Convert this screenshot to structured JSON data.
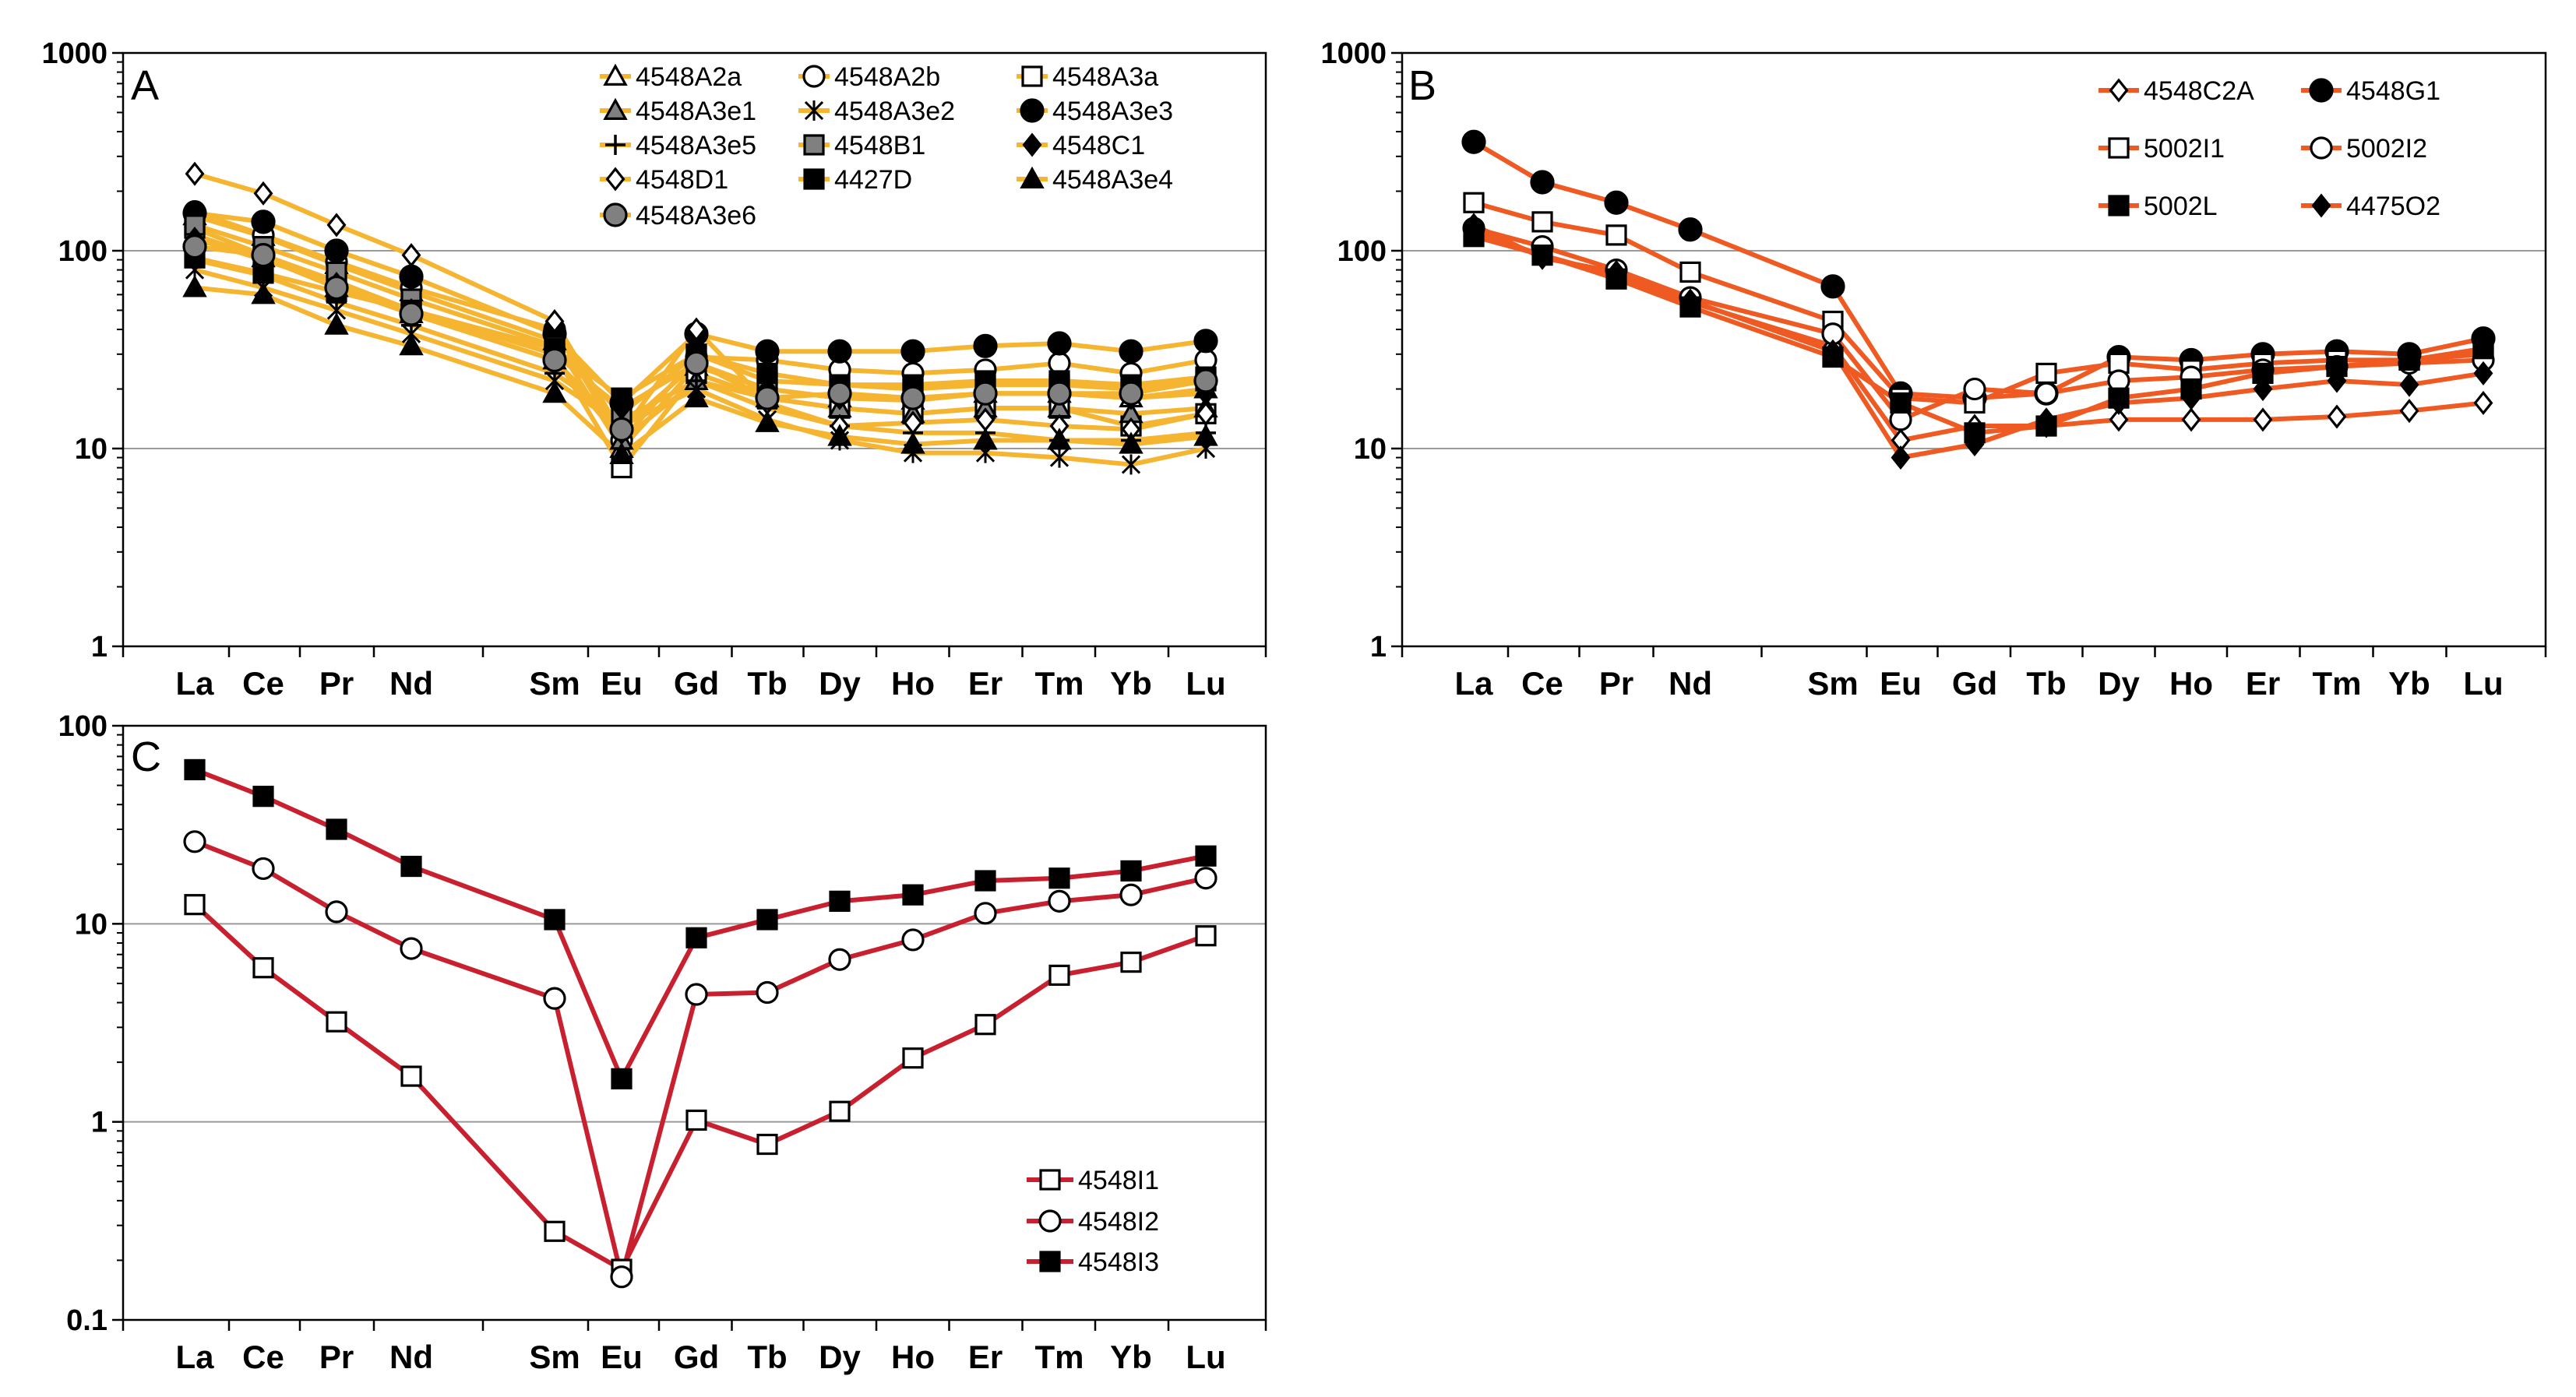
{
  "chart_data": [
    {
      "panel": "A",
      "type": "line",
      "y_scale": "log",
      "ylim": [
        1,
        1000
      ],
      "yticks": [
        "1",
        "10",
        "100",
        "1000"
      ],
      "grid": true,
      "categories": [
        "La",
        "Ce",
        "Pr",
        "Nd",
        "Sm",
        "Eu",
        "Gd",
        "Tb",
        "Dy",
        "Ho",
        "Er",
        "Tm",
        "Yb",
        "Lu"
      ],
      "line_color": "#f5b531",
      "legend_position": "top-right",
      "series": [
        {
          "name": "4548A2a",
          "marker": "tri-open",
          "values": [
            150,
            118,
            85,
            62,
            35,
            10,
            26,
            20,
            18,
            17.5,
            19,
            19,
            18,
            20
          ]
        },
        {
          "name": "4548A2b",
          "marker": "circle-open",
          "values": [
            158,
            120,
            88,
            65,
            40,
            11,
            29,
            28,
            25,
            24,
            25,
            27,
            24,
            28
          ]
        },
        {
          "name": "4548A3a",
          "marker": "square-open",
          "values": [
            130,
            95,
            70,
            50,
            30,
            8,
            24,
            18,
            16,
            15,
            16,
            16,
            13,
            15
          ]
        },
        {
          "name": "4548A3e1",
          "marker": "tri-gray",
          "values": [
            120,
            92,
            65,
            48,
            28,
            11,
            22,
            18,
            16,
            15,
            16,
            16,
            15,
            16
          ]
        },
        {
          "name": "4548A3e2",
          "marker": "asterisk",
          "values": [
            80,
            65,
            50,
            38,
            22,
            13,
            20,
            14,
            11,
            9.5,
            9.5,
            9,
            8.3,
            10
          ]
        },
        {
          "name": "4548A3e3",
          "marker": "circle-black",
          "values": [
            155,
            140,
            100,
            74,
            38,
            17,
            38,
            31,
            31,
            31,
            33,
            34,
            31,
            35
          ]
        },
        {
          "name": "4548A3e5",
          "marker": "plus",
          "values": [
            90,
            75,
            55,
            42,
            24,
            14,
            22,
            16,
            13,
            12,
            12,
            11,
            11,
            12
          ]
        },
        {
          "name": "4548B1",
          "marker": "square-gray",
          "values": [
            135,
            105,
            78,
            57,
            33,
            15,
            30,
            22,
            21,
            20,
            21,
            21,
            20,
            22
          ]
        },
        {
          "name": "4548C1",
          "marker": "diamond-black",
          "values": [
            115,
            90,
            68,
            50,
            30,
            16,
            27,
            20,
            18,
            18,
            19,
            19,
            18,
            19
          ]
        },
        {
          "name": "4548D1",
          "marker": "diamond-open",
          "values": [
            245,
            195,
            135,
            95,
            44,
            12,
            40,
            17,
            13,
            13.5,
            14,
            13,
            12.5,
            15
          ]
        },
        {
          "name": "4427D",
          "marker": "square-black",
          "values": [
            92,
            77,
            62,
            50,
            32,
            18,
            30,
            24,
            21,
            21,
            22,
            22,
            21,
            23
          ]
        },
        {
          "name": "4548A3e4",
          "marker": "tri-black",
          "values": [
            65,
            60,
            42,
            33,
            19,
            9.3,
            18,
            13.5,
            11.5,
            10.5,
            11,
            11,
            10.5,
            11.5
          ]
        },
        {
          "name": "4548A3e6",
          "marker": "circle-gray",
          "values": [
            105,
            95,
            65,
            48,
            28,
            12.5,
            27,
            18,
            19,
            18,
            19,
            19,
            19,
            22
          ]
        }
      ]
    },
    {
      "panel": "B",
      "type": "line",
      "y_scale": "log",
      "ylim": [
        1,
        1000
      ],
      "yticks": [
        "1",
        "10",
        "100",
        "1000"
      ],
      "grid": true,
      "categories": [
        "La",
        "Ce",
        "Pr",
        "Nd",
        "Sm",
        "Eu",
        "Gd",
        "Tb",
        "Dy",
        "Ho",
        "Er",
        "Tm",
        "Yb",
        "Lu"
      ],
      "line_color": "#ef5a22",
      "legend_position": "top-right",
      "series": [
        {
          "name": "4548C2A",
          "marker": "diamond-open",
          "values": [
            125,
            95,
            75,
            55,
            33,
            11,
            13,
            13,
            14,
            14,
            14,
            14.5,
            15.5,
            17
          ]
        },
        {
          "name": "4548G1",
          "marker": "circle-black",
          "values": [
            355,
            222,
            175,
            128,
            66,
            19,
            18,
            19,
            29,
            28,
            30,
            31,
            30,
            36
          ]
        },
        {
          "name": "5002I1",
          "marker": "square-open",
          "values": [
            175,
            140,
            120,
            78,
            44,
            18,
            17,
            24,
            27,
            25,
            27,
            28,
            28,
            30
          ]
        },
        {
          "name": "5002I2",
          "marker": "circle-open",
          "values": [
            130,
            105,
            80,
            58,
            38,
            14,
            20,
            19,
            22,
            23,
            25,
            26,
            27,
            28
          ]
        },
        {
          "name": "5002L",
          "marker": "square-black",
          "values": [
            118,
            95,
            72,
            52,
            29,
            17,
            12,
            13,
            18,
            20,
            24,
            26,
            28,
            32
          ]
        },
        {
          "name": "4475O2",
          "marker": "diamond-black",
          "values": [
            135,
            92,
            78,
            56,
            31,
            9,
            10.5,
            14,
            17,
            18,
            20,
            22,
            21,
            24
          ]
        }
      ]
    },
    {
      "panel": "C",
      "type": "line",
      "y_scale": "log",
      "ylim": [
        0.1,
        100
      ],
      "yticks": [
        "0.1",
        "1",
        "10",
        "100"
      ],
      "grid": true,
      "categories": [
        "La",
        "Ce",
        "Pr",
        "Nd",
        "Sm",
        "Eu",
        "Gd",
        "Tb",
        "Dy",
        "Ho",
        "Er",
        "Tm",
        "Yb",
        "Lu"
      ],
      "line_color": "#c8202f",
      "legend_position": "bottom-right",
      "series": [
        {
          "name": "4548I1",
          "marker": "square-open",
          "values": [
            12.5,
            6,
            3.2,
            1.7,
            0.28,
            0.18,
            1.02,
            0.77,
            1.13,
            2.1,
            3.1,
            5.5,
            6.4,
            8.7
          ]
        },
        {
          "name": "4548I2",
          "marker": "circle-open",
          "values": [
            26,
            19,
            11.5,
            7.5,
            4.2,
            0.165,
            4.4,
            4.5,
            6.6,
            8.3,
            11.3,
            13,
            14,
            17
          ]
        },
        {
          "name": "4548I3",
          "marker": "square-black",
          "values": [
            60,
            44,
            30,
            19.5,
            10.5,
            1.65,
            8.5,
            10.5,
            13,
            14,
            16.5,
            17,
            18.5,
            22
          ]
        }
      ]
    }
  ]
}
